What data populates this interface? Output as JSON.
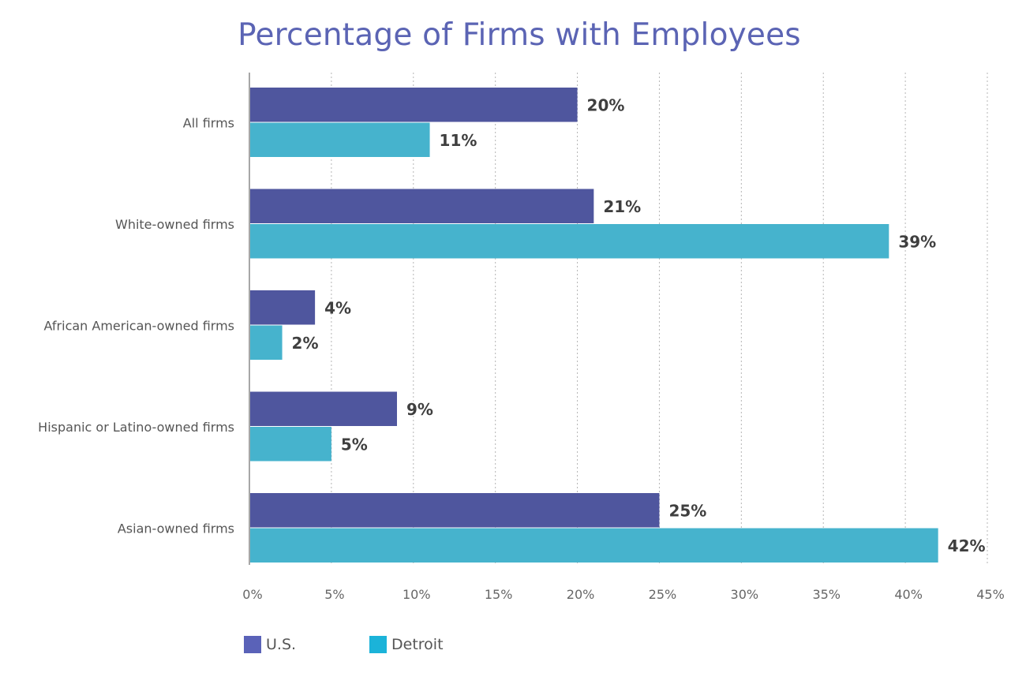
{
  "chart_data": {
    "type": "bar",
    "orientation": "horizontal",
    "title": "Percentage of Firms with Employees",
    "categories": [
      "All firms",
      "White-owned firms",
      "African American-owned firms",
      "Hispanic or Latino-owned firms",
      "Asian-owned firms"
    ],
    "series": [
      {
        "name": "U.S.",
        "color": "#4f569e",
        "values": [
          20,
          21,
          4,
          9,
          25
        ],
        "labels": [
          "20%",
          "21%",
          "4%",
          "9%",
          "25%"
        ]
      },
      {
        "name": "Detroit",
        "color": "#46b3cd",
        "values": [
          11,
          39,
          2,
          5,
          42
        ],
        "labels": [
          "11%",
          "39%",
          "2%",
          "5%",
          "42%"
        ]
      }
    ],
    "xlim": [
      0,
      45
    ],
    "xticks": [
      "0%",
      "5%",
      "10%",
      "15%",
      "20%",
      "25%",
      "30%",
      "35%",
      "40%",
      "45%"
    ],
    "grid": "vertical dotted",
    "legend": "bottom-left"
  }
}
